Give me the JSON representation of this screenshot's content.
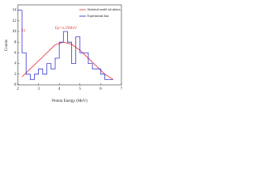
{
  "chart_data": {
    "type": "line",
    "x_label": "Proton Energy (MeV)",
    "y_label": "Counts",
    "annotations": [
      "b)",
      "Ep=4.29MeV"
    ],
    "xlim": [
      2,
      7
    ],
    "xticks": [
      2,
      3,
      4,
      5,
      6,
      7
    ],
    "ylim": [
      0,
      15
    ],
    "yticks": [
      0,
      2,
      4,
      6,
      8,
      10,
      12,
      14
    ],
    "legend": "top-right",
    "series": [
      {
        "name": "Statistical model calculation",
        "color": "#e8414a",
        "x": [
          2.2,
          2.6,
          3.0,
          3.4,
          3.8,
          4.2,
          4.6,
          5.0,
          5.4,
          5.8,
          6.2,
          6.6
        ],
        "values": [
          1.5,
          3,
          4.5,
          6,
          7.5,
          8,
          7.6,
          6.5,
          5,
          3.5,
          2,
          1
        ]
      },
      {
        "name": "Experimental data",
        "color": "#3a3ad0",
        "bins": [
          2.0,
          2.2,
          2.4,
          2.6,
          2.8,
          3.0,
          3.2,
          3.4,
          3.6,
          3.8,
          4.0,
          4.2,
          4.4,
          4.6,
          4.8,
          5.0,
          5.2,
          5.4,
          5.6,
          5.8,
          6.0,
          6.2,
          6.4,
          6.6
        ],
        "values": [
          14,
          6,
          2,
          1,
          2,
          3,
          2,
          4,
          3,
          5,
          8,
          10,
          8,
          4,
          9,
          6,
          6,
          4,
          3,
          3,
          2,
          1,
          1
        ]
      }
    ]
  }
}
